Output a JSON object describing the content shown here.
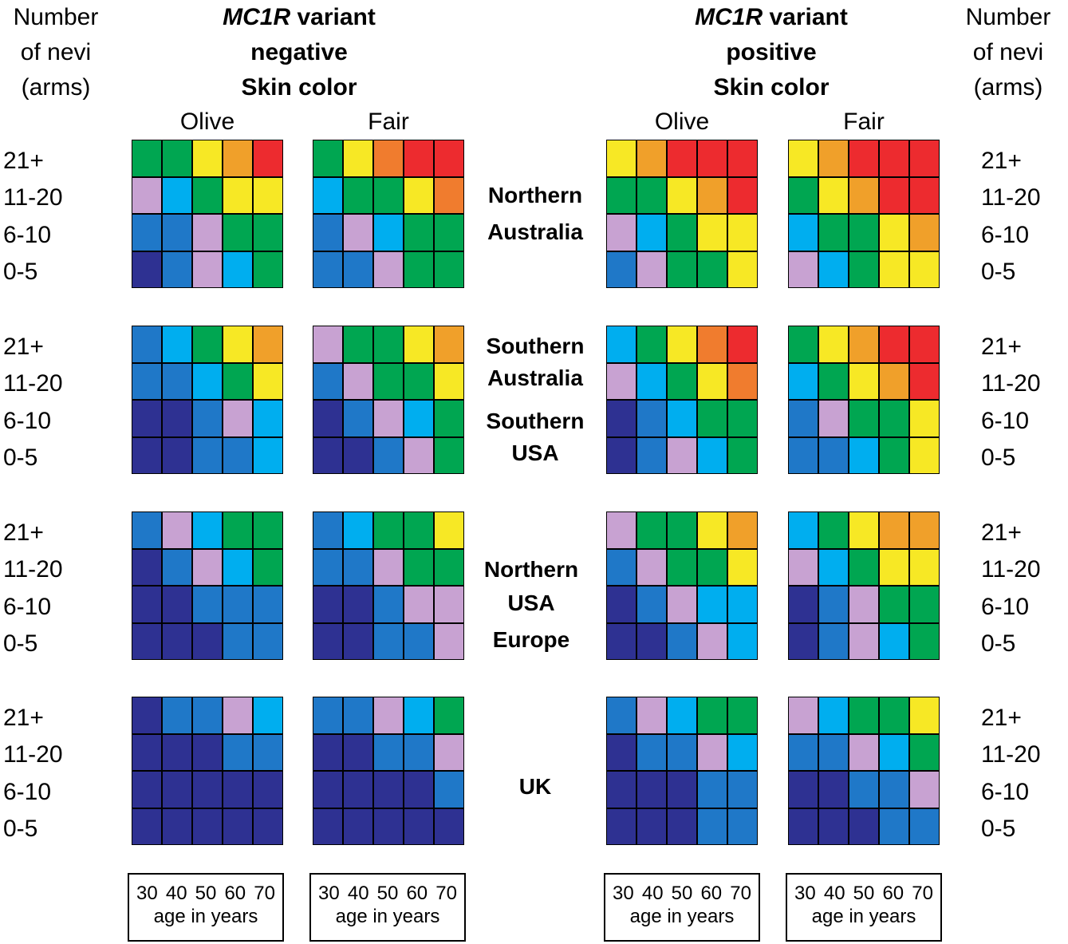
{
  "headers": {
    "left_nevi": [
      "Number",
      "of nevi",
      "(arms)"
    ],
    "right_nevi": [
      "Number",
      "of nevi",
      "(arms)"
    ],
    "negative": {
      "gene": "MC1R",
      "line1_suffix": " variant",
      "line2": "negative",
      "line3": "Skin color"
    },
    "positive": {
      "gene": "MC1R",
      "line1_suffix": " variant",
      "line2": "positive",
      "line3": "Skin color"
    }
  },
  "skin_colors": [
    "Olive",
    "Fair",
    "Olive",
    "Fair"
  ],
  "row_labels": [
    "21+",
    "11-20",
    "6-10",
    "0-5"
  ],
  "regions": [
    [
      "Northern",
      "Australia"
    ],
    [
      "Southern",
      "Australia",
      "Southern",
      "USA"
    ],
    [
      "Northern",
      "USA",
      "Europe"
    ],
    [
      "UK"
    ]
  ],
  "axis": {
    "ticks": [
      "30",
      "40",
      "50",
      "60",
      "70"
    ],
    "title": "age in years"
  },
  "colors": {
    "N": "#2e3192",
    "B": "#1f78c8",
    "C": "#00aeef",
    "P": "#c8a2d2",
    "G": "#00a651",
    "Y": "#f7e825",
    "A": "#f0a02a",
    "O": "#f07c2e",
    "R": "#ed2b2f"
  },
  "chart_data": {
    "type": "heatmap",
    "x": [
      "30",
      "40",
      "50",
      "60",
      "70"
    ],
    "xlabel": "age in years",
    "y": [
      "21+",
      "11-20",
      "6-10",
      "0-5"
    ],
    "ylabel": "Number of nevi (arms)",
    "color_codes": "N=dark blue, B=blue, C=cyan, P=lilac, G=green, Y=yellow, A=light orange, O=orange, R=red",
    "panels": [
      [
        [
          "GGYAR",
          "PCGYY",
          "BBPGG",
          "NBPCG"
        ],
        [
          "GYORR",
          "CGGYO",
          "BPCGG",
          "BBPGG"
        ],
        [
          "YARRR",
          "GGYAR",
          "PCGYY",
          "BPGGY"
        ],
        [
          "YARRR",
          "GYARR",
          "CGGYA",
          "PCGYY"
        ]
      ],
      [
        [
          "BCGYA",
          "BBCGY",
          "NNBPC",
          "NNBBC"
        ],
        [
          "PGGYA",
          "BPGGY",
          "NBPCG",
          "NNBPG"
        ],
        [
          "CGYOR",
          "PCGYO",
          "NBCGG",
          "NBPCG"
        ],
        [
          "GYARR",
          "CGYAR",
          "BPGGY",
          "BBCGY"
        ]
      ],
      [
        [
          "BPCGG",
          "NBPCG",
          "NNBBB",
          "NNNBB"
        ],
        [
          "BCGGY",
          "BBPGG",
          "NNBPP",
          "NNBBP"
        ],
        [
          "PGGYA",
          "BPGGY",
          "NBPCC",
          "NNBPC"
        ],
        [
          "CGYAA",
          "PCGYY",
          "NBPGG",
          "NBPCG"
        ]
      ],
      [
        [
          "NBBPC",
          "NNNBB",
          "NNNNN",
          "NNNNN"
        ],
        [
          "BBPCG",
          "NNBBP",
          "NNNNB",
          "NNNNN"
        ],
        [
          "BPCGG",
          "NBBPC",
          "NNNBB",
          "NNNBB"
        ],
        [
          "PCGGY",
          "BBPCG",
          "NNBBP",
          "NNNBB"
        ]
      ]
    ],
    "panel_columns": [
      "MC1R variant negative / Olive",
      "MC1R variant negative / Fair",
      "MC1R variant positive / Olive",
      "MC1R variant positive / Fair"
    ]
  }
}
